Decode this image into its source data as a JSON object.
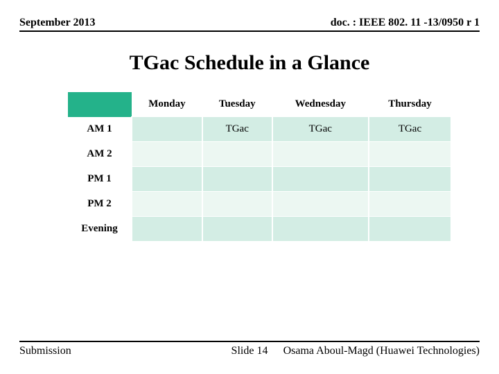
{
  "header": {
    "date": "September 2013",
    "docid": "doc. : IEEE 802. 11 -13/0950 r 1"
  },
  "title": "TGac Schedule in a Glance",
  "table": {
    "days": [
      "Monday",
      "Tuesday",
      "Wednesday",
      "Thursday"
    ],
    "rows": [
      "AM 1",
      "AM 2",
      "PM 1",
      "PM 2",
      "Evening"
    ],
    "cells": {
      "r0c0": "",
      "r0c1": "TGac",
      "r0c2": "TGac",
      "r0c3": "TGac",
      "r1c0": "",
      "r1c1": "",
      "r1c2": "",
      "r1c3": "",
      "r2c0": "",
      "r2c1": "",
      "r2c2": "",
      "r2c3": "",
      "r3c0": "",
      "r3c1": "",
      "r3c2": "",
      "r3c3": "",
      "r4c0": "",
      "r4c1": "",
      "r4c2": "",
      "r4c3": ""
    },
    "header_bg": "#24b28a",
    "row_odd_bg": "#d3ede4",
    "row_even_bg": "#ecf7f2"
  },
  "footer": {
    "submission": "Submission",
    "slide_label": "Slide 14",
    "author_overlap": "Osama Aboul-Magd (Huawei Technologies)"
  }
}
